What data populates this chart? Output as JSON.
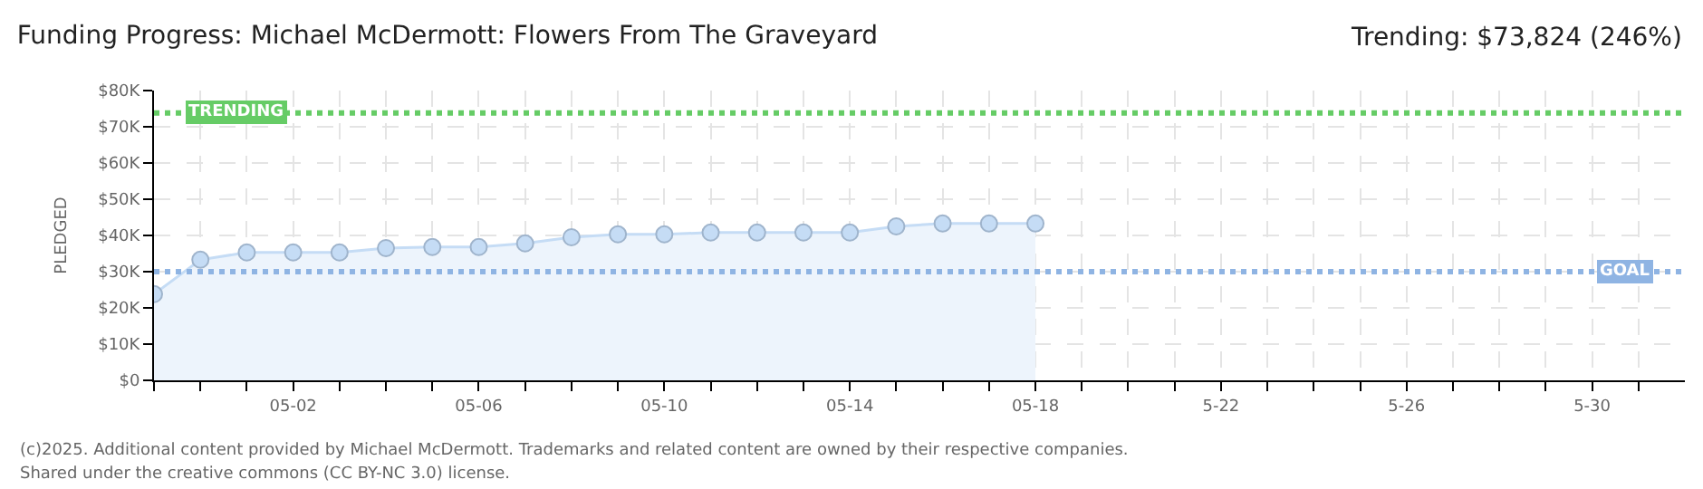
{
  "chart_data": {
    "type": "area",
    "title": "Funding Progress: Michael McDermott: Flowers From The Graveyard",
    "ylabel": "PLEDGED",
    "x": [
      "2025-04-29",
      "2025-04-30",
      "2025-05-01",
      "2025-05-02",
      "2025-05-03",
      "2025-05-04",
      "2025-05-05",
      "2025-05-06",
      "2025-05-07",
      "2025-05-08",
      "2025-05-09",
      "2025-05-10",
      "2025-05-11",
      "2025-05-12",
      "2025-05-13",
      "2025-05-14",
      "2025-05-15",
      "2025-05-16",
      "2025-05-17",
      "2025-05-18"
    ],
    "series": [
      {
        "color": "#c5dcf5",
        "values": [
          23800,
          33300,
          35300,
          35300,
          35300,
          36500,
          36800,
          36800,
          37800,
          39500,
          40300,
          40300,
          40800,
          40800,
          40800,
          40800,
          42500,
          43300,
          43300,
          43300
        ]
      }
    ],
    "marker": "circle",
    "xlim": [
      "2025-04-29",
      "2025-06-01"
    ],
    "xticks": [
      {
        "value": "2025-04-29",
        "label": null
      },
      {
        "value": "2025-04-30",
        "label": null
      },
      {
        "value": "2025-05-01",
        "label": null
      },
      {
        "value": "2025-05-02",
        "label": "05-02"
      },
      {
        "value": "2025-05-03",
        "label": null
      },
      {
        "value": "2025-05-04",
        "label": null
      },
      {
        "value": "2025-05-05",
        "label": null
      },
      {
        "value": "2025-05-06",
        "label": "05-06"
      },
      {
        "value": "2025-05-07",
        "label": null
      },
      {
        "value": "2025-05-08",
        "label": null
      },
      {
        "value": "2025-05-09",
        "label": null
      },
      {
        "value": "2025-05-10",
        "label": "05-10"
      },
      {
        "value": "2025-05-11",
        "label": null
      },
      {
        "value": "2025-05-12",
        "label": null
      },
      {
        "value": "2025-05-13",
        "label": null
      },
      {
        "value": "2025-05-14",
        "label": "05-14"
      },
      {
        "value": "2025-05-15",
        "label": null
      },
      {
        "value": "2025-05-16",
        "label": null
      },
      {
        "value": "2025-05-17",
        "label": null
      },
      {
        "value": "2025-05-18",
        "label": "05-18"
      },
      {
        "value": "2025-05-19",
        "label": null
      },
      {
        "value": "2025-05-20",
        "label": null
      },
      {
        "value": "2025-05-21",
        "label": null
      },
      {
        "value": "2025-05-22",
        "label": "5-22"
      },
      {
        "value": "2025-05-23",
        "label": null
      },
      {
        "value": "2025-05-24",
        "label": null
      },
      {
        "value": "2025-05-25",
        "label": null
      },
      {
        "value": "2025-05-26",
        "label": "5-26"
      },
      {
        "value": "2025-05-27",
        "label": null
      },
      {
        "value": "2025-05-28",
        "label": null
      },
      {
        "value": "2025-05-29",
        "label": null
      },
      {
        "value": "2025-05-30",
        "label": "5-30"
      },
      {
        "value": "2025-05-31",
        "label": null
      }
    ],
    "ylim": [
      0,
      80000
    ],
    "yticks": [
      {
        "value": 0,
        "label": "$0"
      },
      {
        "value": 10000,
        "label": "$10K"
      },
      {
        "value": 20000,
        "label": "$20K"
      },
      {
        "value": 30000,
        "label": "$30K"
      },
      {
        "value": 40000,
        "label": "$40K"
      },
      {
        "value": 50000,
        "label": "$50K"
      },
      {
        "value": 60000,
        "label": "$60K"
      },
      {
        "value": 70000,
        "label": "$70K"
      },
      {
        "value": 80000,
        "label": "$80K"
      }
    ],
    "grid": true,
    "ref_lines": [
      {
        "axis": "y",
        "value": 73824,
        "label": "TRENDING",
        "color": "#66cc66",
        "line_style": "dotted"
      },
      {
        "axis": "y",
        "value": 30000,
        "label": "GOAL",
        "color": "#8fb4e3",
        "line_style": "dotted"
      }
    ],
    "annotations": [
      "Trending: $73,824 (246%)",
      "(c)2025. Additional content provided by Michael McDermott. Trademarks and related content are owned by their respective companies.",
      "Shared under the creative commons (CC BY-NC 3.0) license."
    ]
  }
}
